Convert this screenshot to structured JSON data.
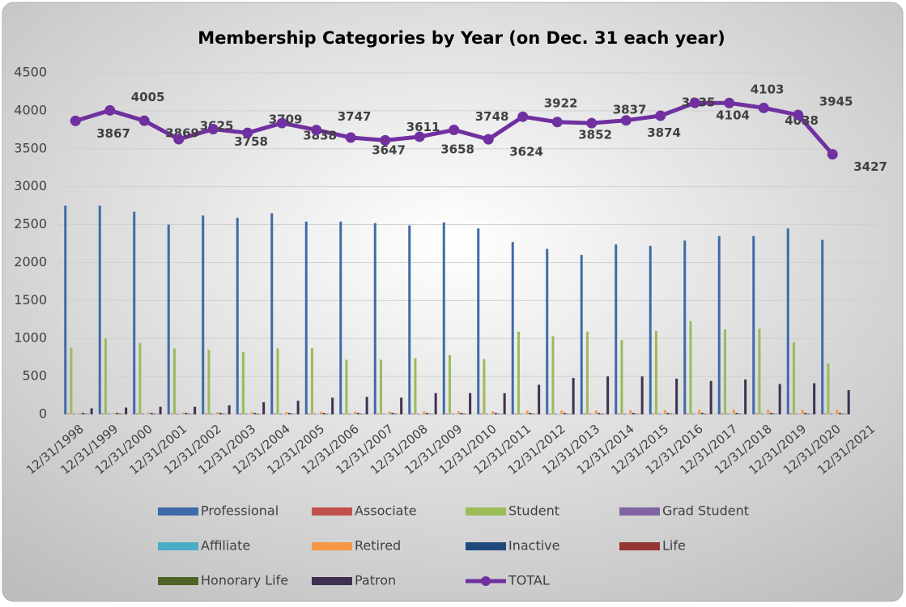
{
  "chart_data": {
    "type": "bar_line",
    "title": "Membership Categories by Year (on Dec. 31 each year)",
    "categories": [
      "12/31/1998",
      "12/31/1999",
      "12/31/2000",
      "12/31/2001",
      "12/31/2002",
      "12/31/2003",
      "12/31/2004",
      "12/31/2005",
      "12/31/2006",
      "12/31/2007",
      "12/31/2008",
      "12/31/2009",
      "12/31/2010",
      "12/31/2011",
      "12/31/2012",
      "12/31/2013",
      "12/31/2014",
      "12/31/2015",
      "12/31/2016",
      "12/31/2017",
      "12/31/2018",
      "12/31/2019",
      "12/31/2020",
      "12/31/2021"
    ],
    "ylim": [
      0,
      4500
    ],
    "yticks": [
      0,
      500,
      1000,
      1500,
      2000,
      2500,
      3000,
      3500,
      4000,
      4500
    ],
    "legend": "bottom",
    "series": [
      {
        "name": "Professional",
        "color": "#3f6aa8",
        "kind": "bar",
        "values": [
          2750,
          2750,
          2670,
          2500,
          2620,
          2590,
          2650,
          2540,
          2540,
          2520,
          2490,
          2530,
          2450,
          2270,
          2180,
          2100,
          2240,
          2220,
          2290,
          2350,
          2350,
          2450,
          2300,
          null
        ]
      },
      {
        "name": "Associate",
        "color": "#c0504d",
        "kind": "bar",
        "values": [
          10,
          10,
          10,
          10,
          10,
          10,
          10,
          10,
          10,
          10,
          10,
          10,
          10,
          10,
          10,
          10,
          10,
          10,
          10,
          10,
          10,
          10,
          10,
          null
        ]
      },
      {
        "name": "Student",
        "color": "#9bbb59",
        "kind": "bar",
        "values": [
          880,
          1000,
          940,
          870,
          850,
          820,
          870,
          870,
          720,
          720,
          740,
          780,
          730,
          1090,
          1030,
          1090,
          980,
          1100,
          1230,
          1120,
          1130,
          950,
          670,
          null
        ]
      },
      {
        "name": "Grad Student",
        "color": "#8064a2",
        "kind": "bar",
        "values": [
          10,
          10,
          10,
          10,
          10,
          10,
          10,
          10,
          10,
          10,
          10,
          10,
          10,
          10,
          10,
          10,
          10,
          10,
          10,
          10,
          10,
          10,
          10,
          null
        ]
      },
      {
        "name": "Affiliate",
        "color": "#4bacc6",
        "kind": "bar",
        "values": [
          5,
          5,
          5,
          5,
          5,
          5,
          5,
          5,
          5,
          5,
          5,
          5,
          5,
          5,
          5,
          5,
          5,
          5,
          5,
          5,
          5,
          5,
          5,
          null
        ]
      },
      {
        "name": "Retired",
        "color": "#f79646",
        "kind": "bar",
        "values": [
          20,
          20,
          25,
          25,
          30,
          30,
          30,
          35,
          35,
          35,
          40,
          40,
          40,
          50,
          50,
          50,
          55,
          55,
          60,
          60,
          60,
          60,
          60,
          null
        ]
      },
      {
        "name": "Inactive",
        "color": "#1f497d",
        "kind": "bar",
        "values": [
          20,
          20,
          20,
          20,
          20,
          20,
          20,
          20,
          20,
          20,
          20,
          20,
          20,
          20,
          20,
          20,
          20,
          20,
          20,
          20,
          20,
          20,
          20,
          null
        ]
      },
      {
        "name": "Life",
        "color": "#943634",
        "kind": "bar",
        "values": [
          10,
          10,
          10,
          10,
          10,
          10,
          10,
          10,
          10,
          10,
          10,
          10,
          10,
          10,
          10,
          10,
          10,
          10,
          10,
          10,
          10,
          10,
          10,
          null
        ]
      },
      {
        "name": "Honorary Life",
        "color": "#4f6228",
        "kind": "bar",
        "values": [
          5,
          5,
          5,
          5,
          5,
          5,
          5,
          5,
          5,
          5,
          5,
          5,
          5,
          5,
          5,
          5,
          5,
          5,
          5,
          5,
          5,
          5,
          5,
          null
        ]
      },
      {
        "name": "Patron",
        "color": "#3f3151",
        "kind": "bar",
        "values": [
          80,
          90,
          100,
          100,
          120,
          160,
          180,
          220,
          230,
          220,
          280,
          280,
          280,
          390,
          480,
          500,
          500,
          470,
          440,
          460,
          400,
          410,
          320,
          null
        ]
      },
      {
        "name": "TOTAL",
        "color": "#7030a0",
        "kind": "line",
        "values": [
          3867,
          4005,
          3869,
          3625,
          3758,
          3709,
          3838,
          3747,
          3647,
          3611,
          3658,
          3748,
          3624,
          3922,
          3852,
          3837,
          3874,
          3935,
          4104,
          4103,
          4038,
          3945,
          3427,
          null
        ]
      }
    ]
  }
}
